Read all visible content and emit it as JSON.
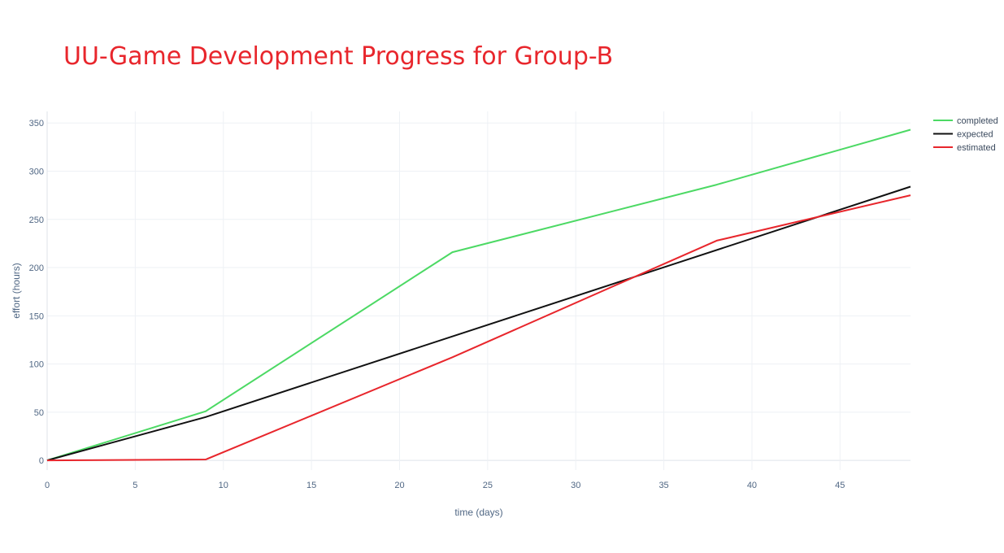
{
  "chart_data": {
    "type": "line",
    "title": "UU-Game Development Progress for Group-B",
    "title_color": "#e8262c",
    "xlabel": "time (days)",
    "ylabel": "effort (hours)",
    "xlim": [
      0,
      49
    ],
    "ylim": [
      -10,
      362
    ],
    "x_ticks": [
      0,
      5,
      10,
      15,
      20,
      25,
      30,
      35,
      40,
      45
    ],
    "y_ticks": [
      0,
      50,
      100,
      150,
      200,
      250,
      300,
      350
    ],
    "grid": true,
    "legend_position": "top-right",
    "series": [
      {
        "name": "completed",
        "color": "#4cd964",
        "x": [
          0,
          9,
          23,
          38,
          49
        ],
        "y": [
          0,
          51,
          216,
          286,
          343
        ]
      },
      {
        "name": "expected",
        "color": "#111111",
        "x": [
          0,
          9,
          49
        ],
        "y": [
          0,
          45,
          284
        ]
      },
      {
        "name": "estimated",
        "color": "#e8262c",
        "x": [
          0,
          9,
          23,
          38,
          49
        ],
        "y": [
          0,
          1,
          107,
          228,
          275
        ]
      }
    ]
  }
}
